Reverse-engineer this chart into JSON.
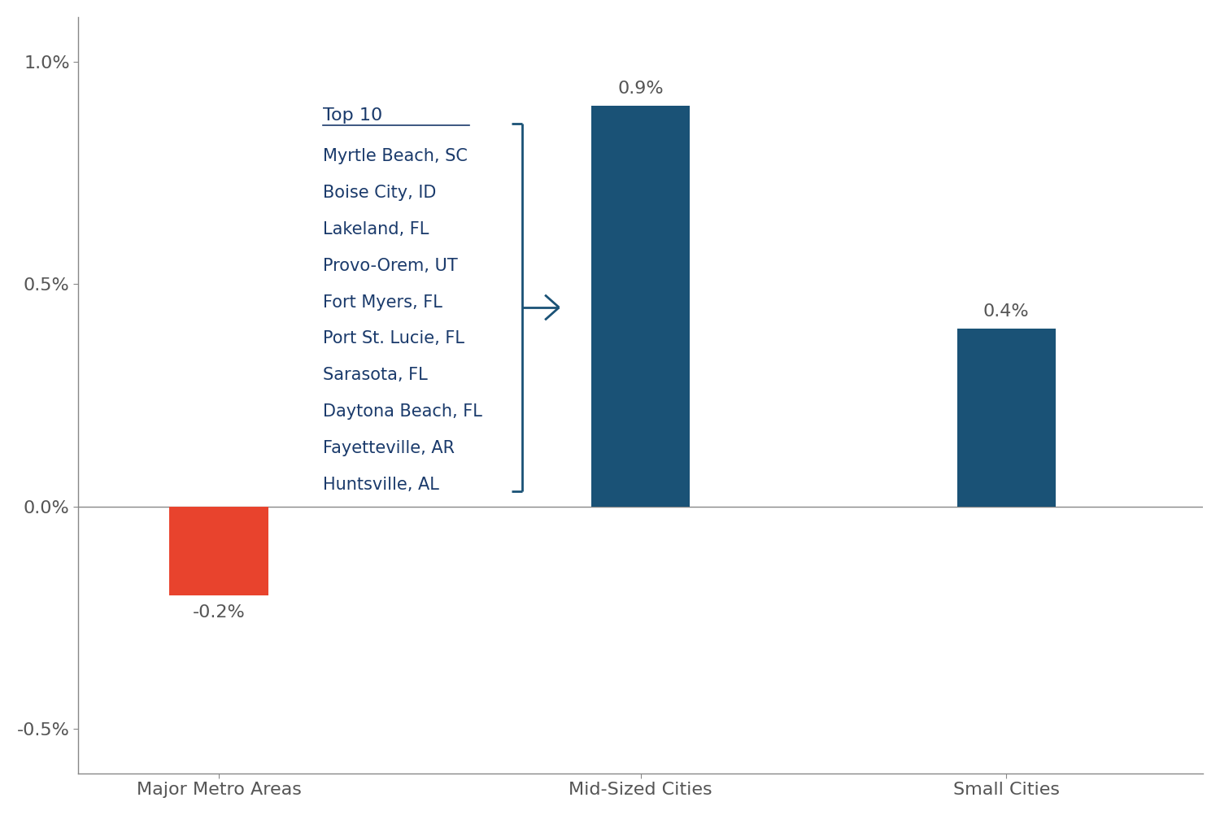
{
  "categories": [
    "Major Metro Areas",
    "Mid-Sized Cities",
    "Small Cities"
  ],
  "values": [
    -0.002,
    0.009,
    0.004
  ],
  "bar_colors": [
    "#e8432d",
    "#1a5276",
    "#1a5276"
  ],
  "bar_labels": [
    "-0.2%",
    "0.9%",
    "0.4%"
  ],
  "ylim": [
    -0.006,
    0.011
  ],
  "yticks": [
    -0.005,
    0.0,
    0.005,
    0.01
  ],
  "ytick_labels": [
    "-0.5%",
    "0.0%",
    "0.5%",
    "1.0%"
  ],
  "background_color": "#ffffff",
  "axis_color": "#1a3a6b",
  "text_color": "#555555",
  "top10_title": "Top 10",
  "top10_cities": [
    "Myrtle Beach, SC",
    "Boise City, ID",
    "Lakeland, FL",
    "Provo-Orem, UT",
    "Fort Myers, FL",
    "Port St. Lucie, FL",
    "Sarasota, FL",
    "Daytona Beach, FL",
    "Fayetteville, AR",
    "Huntsville, AL"
  ],
  "bracket_color": "#1a5276",
  "label_fontsize": 16,
  "tick_fontsize": 16,
  "city_fontsize": 15,
  "bar_width": 0.35,
  "x_positions": [
    0.5,
    2.0,
    3.3
  ],
  "xlim": [
    0,
    4.0
  ]
}
